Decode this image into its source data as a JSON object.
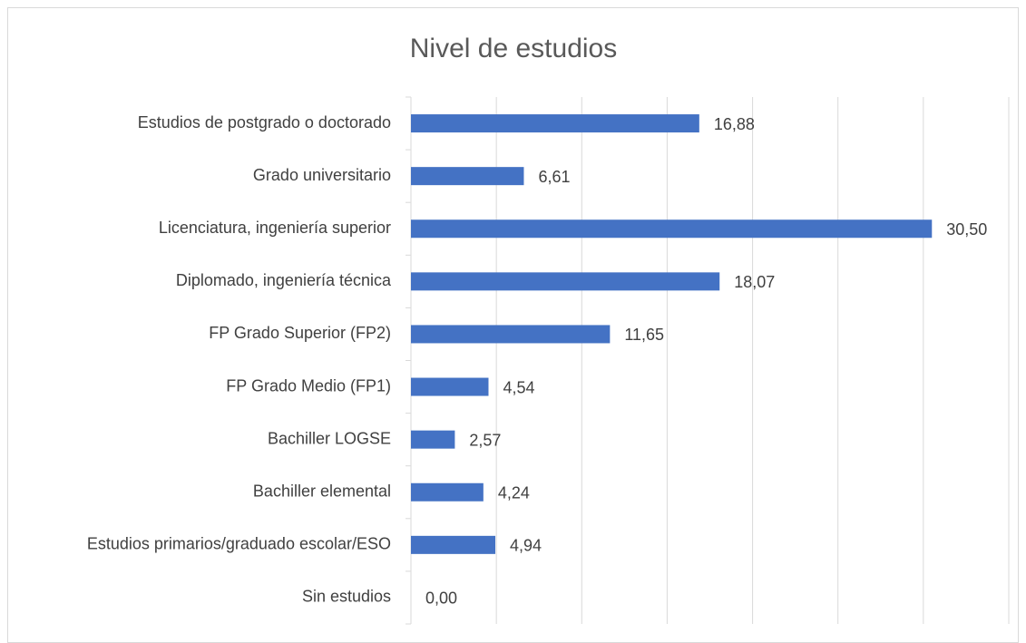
{
  "chart_data": {
    "type": "bar",
    "orientation": "horizontal",
    "title": "Nivel de estudios",
    "categories": [
      "Estudios de postgrado o doctorado",
      "Grado universitario",
      "Licenciatura, ingeniería superior",
      "Diplomado, ingeniería técnica",
      "FP Grado Superior (FP2)",
      "FP Grado Medio (FP1)",
      "Bachiller LOGSE",
      "Bachiller elemental",
      "Estudios primarios/graduado escolar/ESO",
      "Sin estudios"
    ],
    "values": [
      16.88,
      6.61,
      30.5,
      18.07,
      11.65,
      4.54,
      2.57,
      4.24,
      4.94,
      0
    ],
    "value_labels": [
      "16,88",
      "6,61",
      "30,50",
      "18,07",
      "11,65",
      "4,54",
      "2,57",
      "4,24",
      "4,94",
      "0,00"
    ],
    "color": "#4472c4",
    "xlim": [
      0,
      35
    ],
    "xticks": [
      0,
      5,
      10,
      15,
      20,
      25,
      30,
      35
    ],
    "grid": true
  }
}
